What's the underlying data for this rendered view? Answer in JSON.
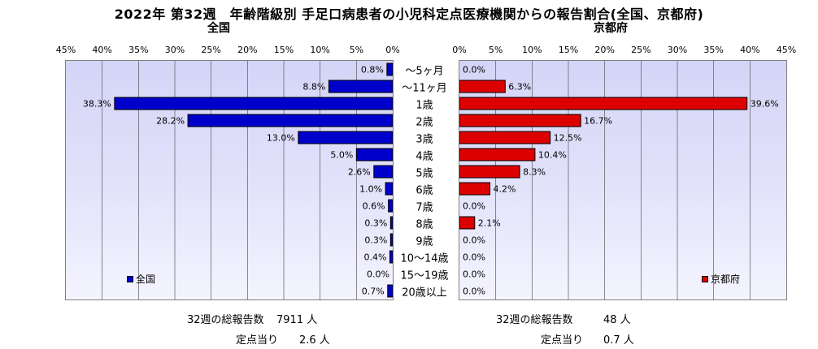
{
  "title": "2022年 第32週　年齢階級別 手足口病患者の小児科定点医療機関からの報告割合(全国、京都府)",
  "chart_data": [
    {
      "type": "bar",
      "orientation": "horizontal-reversed",
      "subtitle": "全国",
      "legend": "全国",
      "legend_position": "bottom-left",
      "color": "#0000cc",
      "categories": [
        "～5ヶ月",
        "～11ヶ月",
        "1歳",
        "2歳",
        "3歳",
        "4歳",
        "5歳",
        "6歳",
        "7歳",
        "8歳",
        "9歳",
        "10～14歳",
        "15～19歳",
        "20歳以上"
      ],
      "values": [
        0.8,
        8.8,
        38.3,
        28.2,
        13.0,
        5.0,
        2.6,
        1.0,
        0.6,
        0.3,
        0.3,
        0.4,
        0.0,
        0.7
      ],
      "value_labels": [
        "0.8%",
        "8.8%",
        "38.3%",
        "28.2%",
        "13.0%",
        "5.0%",
        "2.6%",
        "1.0%",
        "0.6%",
        "0.3%",
        "0.3%",
        "0.4%",
        "0.0%",
        "0.7%"
      ],
      "xlim": [
        0,
        45
      ],
      "xticks": [
        "45%",
        "40%",
        "35%",
        "30%",
        "25%",
        "20%",
        "15%",
        "10%",
        "5%",
        "0%"
      ],
      "grid": true
    },
    {
      "type": "bar",
      "orientation": "horizontal",
      "subtitle": "京都府",
      "legend": "京都府",
      "legend_position": "bottom-right",
      "color": "#dd0000",
      "categories": [
        "～5ヶ月",
        "～11ヶ月",
        "1歳",
        "2歳",
        "3歳",
        "4歳",
        "5歳",
        "6歳",
        "7歳",
        "8歳",
        "9歳",
        "10～14歳",
        "15～19歳",
        "20歳以上"
      ],
      "values": [
        0.0,
        6.3,
        39.6,
        16.7,
        12.5,
        10.4,
        8.3,
        4.2,
        0.0,
        2.1,
        0.0,
        0.0,
        0.0,
        0.0
      ],
      "value_labels": [
        "0.0%",
        "6.3%",
        "39.6%",
        "16.7%",
        "12.5%",
        "10.4%",
        "8.3%",
        "4.2%",
        "0.0%",
        "2.1%",
        "0.0%",
        "0.0%",
        "0.0%",
        "0.0%"
      ],
      "xlim": [
        0,
        45
      ],
      "xticks": [
        "0%",
        "5%",
        "10%",
        "15%",
        "20%",
        "25%",
        "30%",
        "35%",
        "40%",
        "45%"
      ],
      "grid": true
    }
  ],
  "footer": {
    "left": {
      "total_label": "32週の総報告数",
      "total_value": "7911 人",
      "per_label": "定点当り",
      "per_value": "2.6 人"
    },
    "right": {
      "total_label": "32週の総報告数",
      "total_value": "48 人",
      "per_label": "定点当り",
      "per_value": "0.7 人"
    }
  }
}
